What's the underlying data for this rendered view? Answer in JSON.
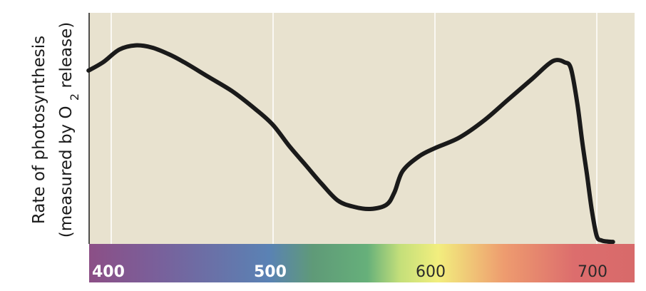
{
  "chart_data": {
    "type": "line",
    "title": "",
    "xlabel": "",
    "ylabel": "Rate of photosynthesis",
    "ylabel_line2_prefix": "(measured by O",
    "ylabel_line2_subscript": "2",
    "ylabel_line2_suffix": " release)",
    "x_ticks": [
      "400",
      "500",
      "600",
      "700"
    ],
    "xlim": [
      386,
      1011
    ],
    "ylim": [
      0,
      1
    ],
    "grid": "vertical",
    "x": [
      386,
      395,
      405,
      415,
      425,
      435,
      445,
      460,
      475,
      490,
      500,
      510,
      520,
      530,
      540,
      550,
      560,
      570,
      575,
      580,
      590,
      600,
      615,
      630,
      645,
      660,
      670,
      675,
      680,
      684,
      688,
      691,
      694,
      697,
      700,
      703,
      706,
      709,
      710
    ],
    "y": [
      0.82,
      0.86,
      0.92,
      0.94,
      0.93,
      0.9,
      0.86,
      0.79,
      0.72,
      0.63,
      0.56,
      0.46,
      0.37,
      0.28,
      0.2,
      0.17,
      0.16,
      0.18,
      0.24,
      0.34,
      0.41,
      0.45,
      0.5,
      0.58,
      0.68,
      0.78,
      0.85,
      0.87,
      0.86,
      0.83,
      0.66,
      0.48,
      0.32,
      0.15,
      0.03,
      0.01,
      0.005,
      0.003,
      0.003
    ],
    "series": [
      {
        "name": "",
        "color": "#1a1a1a"
      }
    ],
    "spectrum_colors": [
      "#8c4f86",
      "#7a5f9a",
      "#5a82b4",
      "#5f9a78",
      "#66b07a",
      "#c4df7a",
      "#f2ee7e",
      "#ee9c6f",
      "#dc6d6d",
      "#d86a6a"
    ],
    "colors": {
      "plot_background": "#e8e2cf",
      "grid": "#ffffff",
      "tick_label_dark": "#2a2a2a",
      "tick_label_light": "#ffffff"
    }
  }
}
